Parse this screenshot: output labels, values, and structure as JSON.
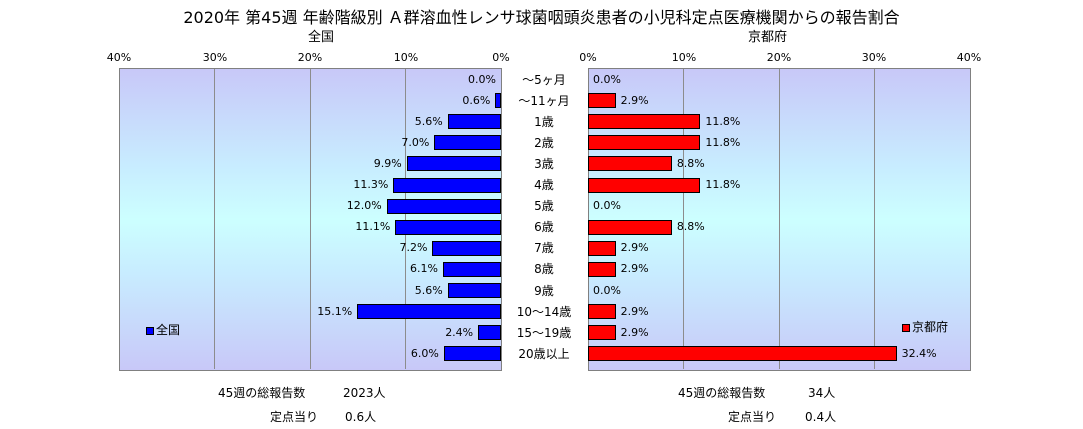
{
  "title": "2020年 第45週 年齢階級別 Ａ群溶血性レンサ球菌咽頭炎患者の小児科定点医療機関からの報告割合",
  "chart_data": {
    "type": "bar",
    "orientation": "horizontal",
    "categories": [
      "～5ヶ月",
      "～11ヶ月",
      "1歳",
      "2歳",
      "3歳",
      "4歳",
      "5歳",
      "6歳",
      "7歳",
      "8歳",
      "9歳",
      "10～14歳",
      "15～19歳",
      "20歳以上"
    ],
    "series": [
      {
        "name": "全国",
        "color": "#0000ff",
        "values": [
          0.0,
          0.6,
          5.6,
          7.0,
          9.9,
          11.3,
          12.0,
          11.1,
          7.2,
          6.1,
          5.6,
          15.1,
          2.4,
          6.0
        ],
        "labels": [
          "0.0%",
          "0.6%",
          "5.6%",
          "7.0%",
          "9.9%",
          "11.3%",
          "12.0%",
          "11.1%",
          "7.2%",
          "6.1%",
          "5.6%",
          "15.1%",
          "2.4%",
          "6.0%"
        ]
      },
      {
        "name": "京都府",
        "color": "#ff0000",
        "values": [
          0.0,
          2.9,
          11.8,
          11.8,
          8.8,
          11.8,
          0.0,
          8.8,
          2.9,
          2.9,
          0.0,
          2.9,
          2.9,
          32.4
        ],
        "labels": [
          "0.0%",
          "2.9%",
          "11.8%",
          "11.8%",
          "8.8%",
          "11.8%",
          "0.0%",
          "8.8%",
          "2.9%",
          "2.9%",
          "0.0%",
          "2.9%",
          "2.9%",
          "32.4%"
        ]
      }
    ],
    "panels": {
      "left_title": "全国",
      "right_title": "京都府"
    },
    "xlim": [
      0,
      40
    ],
    "left_ticks": [
      "40%",
      "30%",
      "20%",
      "10%",
      "0%"
    ],
    "right_ticks": [
      "0%",
      "10%",
      "20%",
      "30%",
      "40%"
    ],
    "grid": true,
    "legend_left": "全国",
    "legend_right": "京都府"
  },
  "footer": {
    "left_total_label": "45週の総報告数",
    "left_total_value": "2023人",
    "left_rate_label": "定点当り",
    "left_rate_value": "0.6人",
    "right_total_label": "45週の総報告数",
    "right_total_value": "34人",
    "right_rate_label": "定点当り",
    "right_rate_value": "0.4人"
  }
}
